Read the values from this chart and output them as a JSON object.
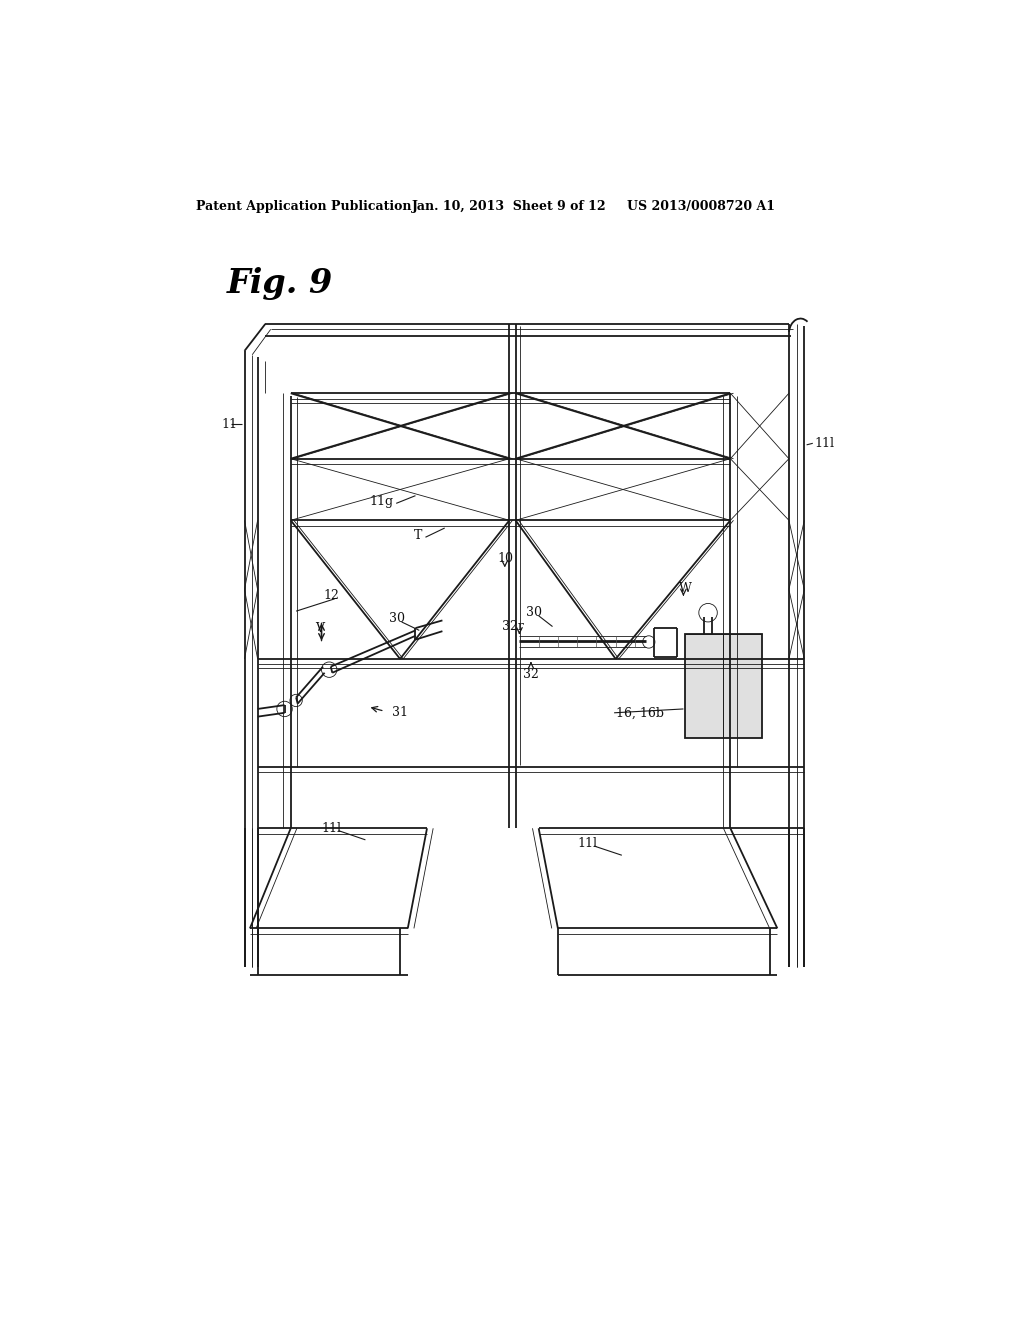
{
  "bg_color": "#ffffff",
  "line_color": "#1a1a1a",
  "text_color": "#111111",
  "header_text": "Patent Application Publication",
  "header_date": "Jan. 10, 2013  Sheet 9 of 12",
  "header_patent": "US 2013/0008720 A1",
  "fig_label": "Fig. 9",
  "lw_main": 1.3,
  "lw_thin": 0.6,
  "lw_thick": 2.0
}
